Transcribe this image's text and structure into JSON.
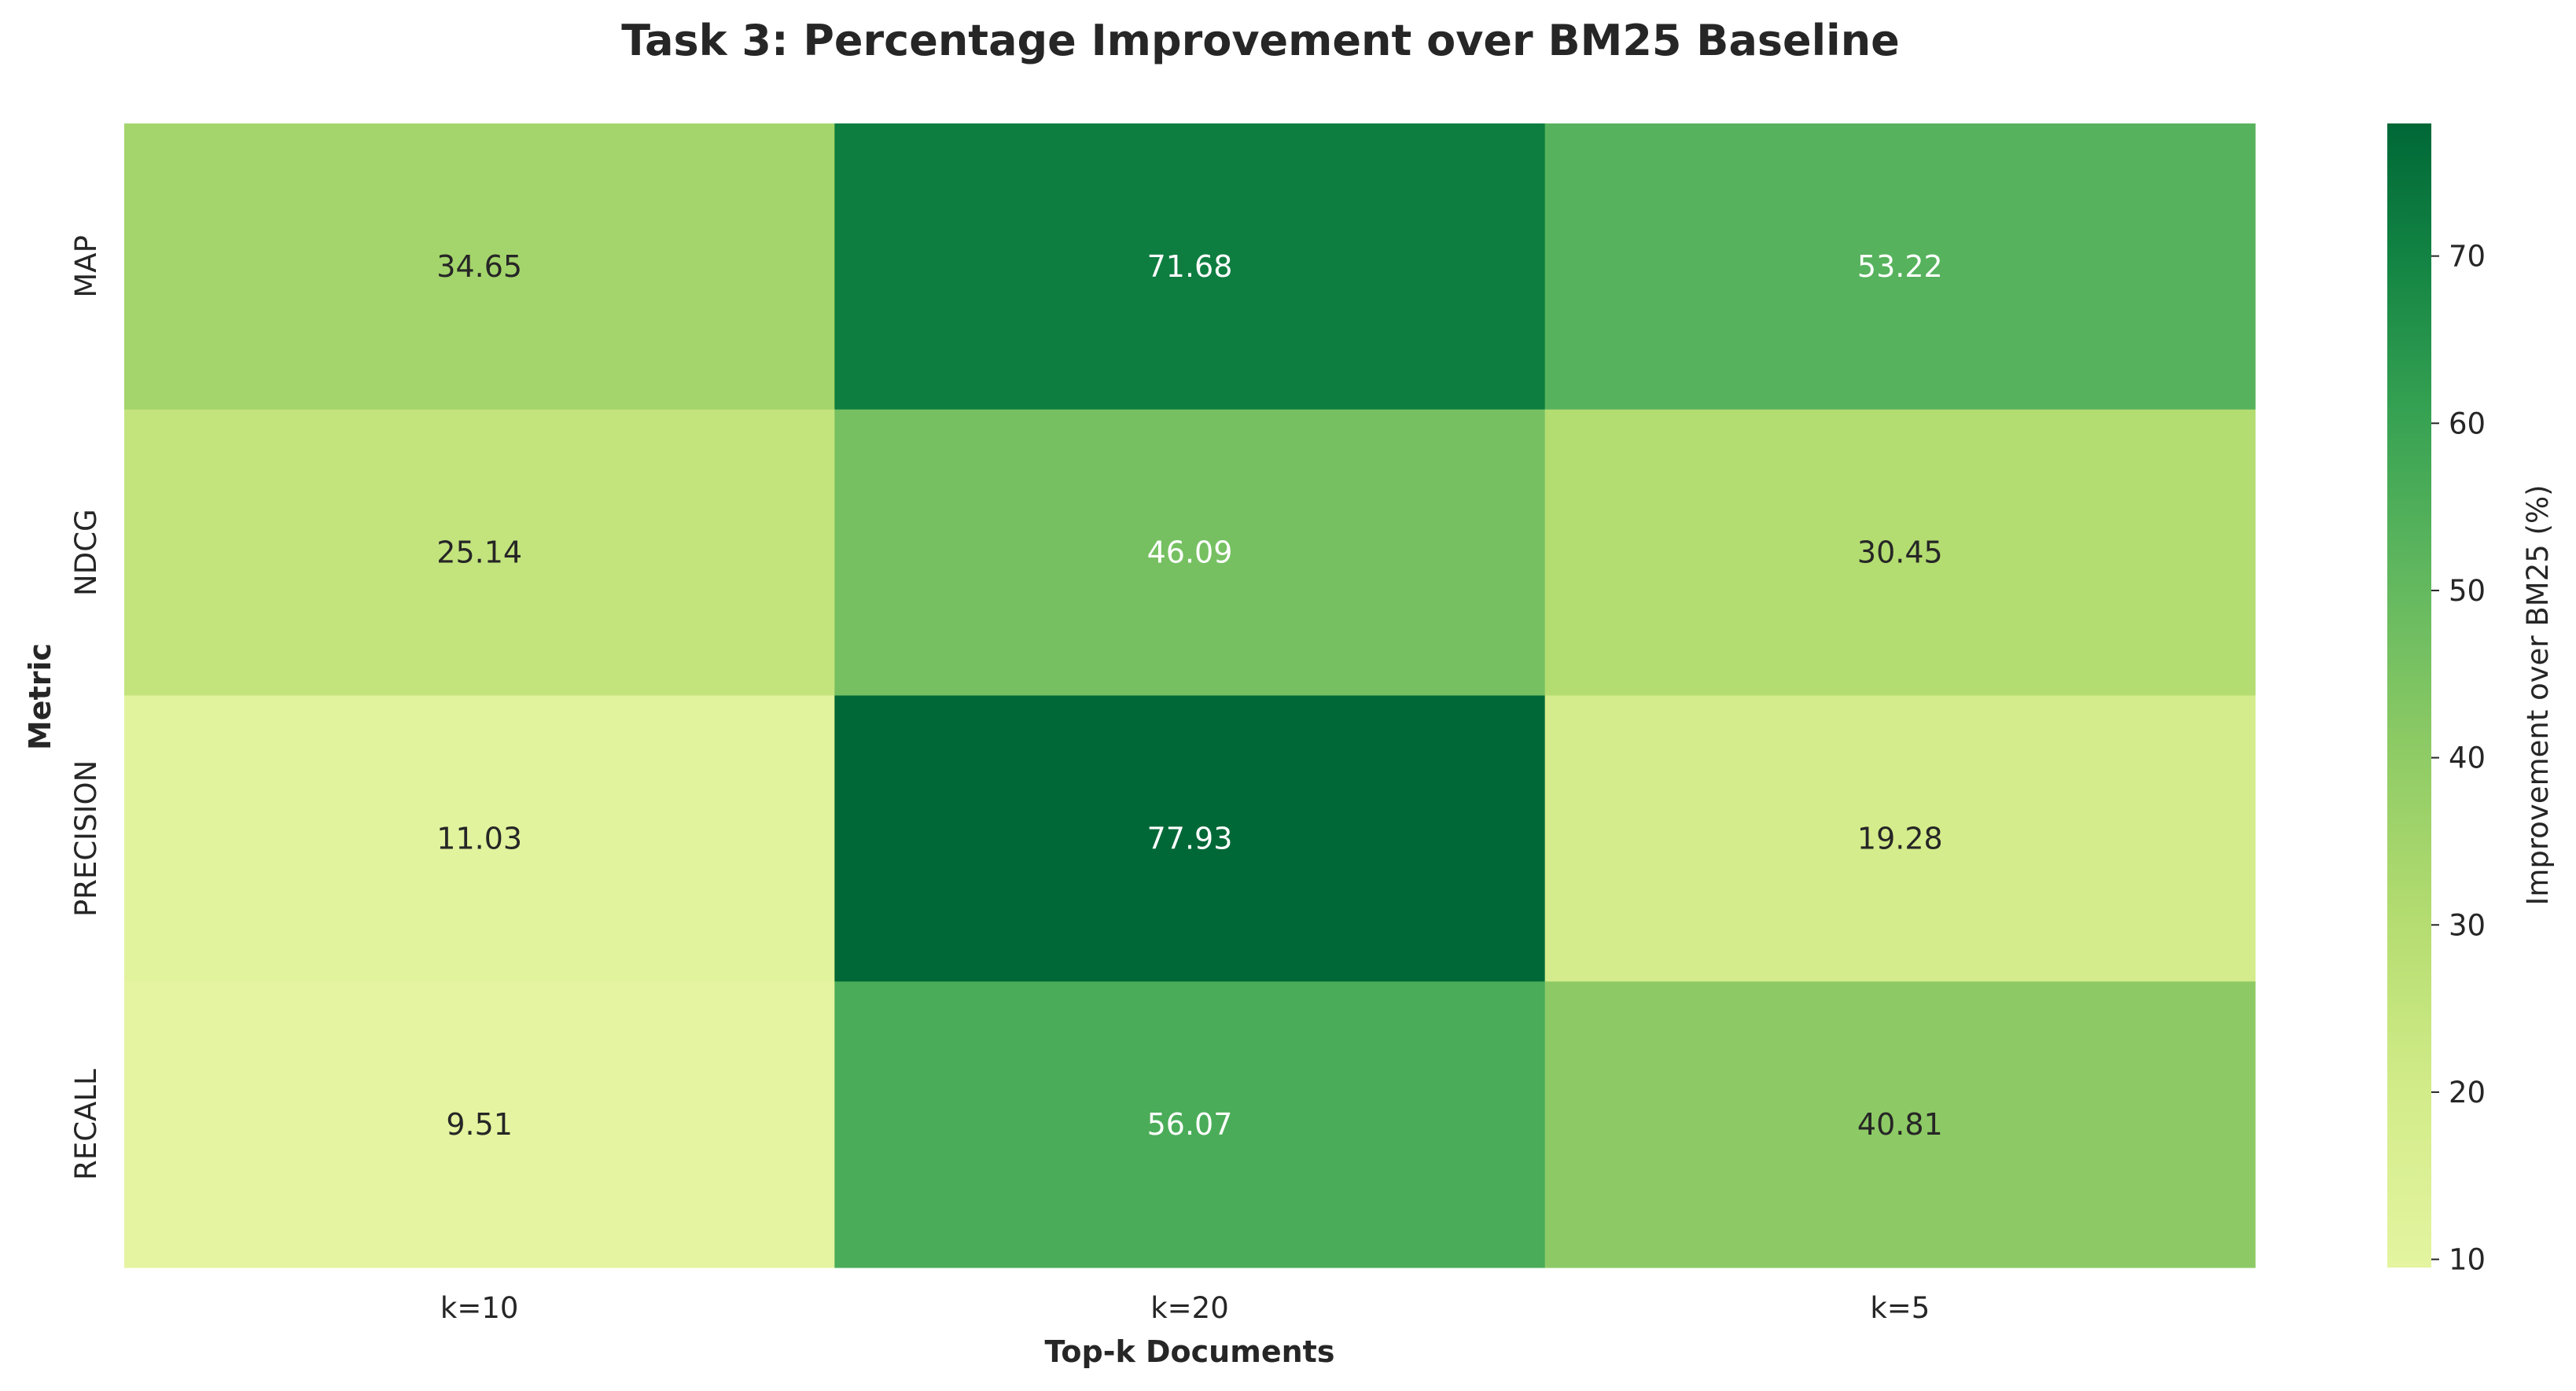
{
  "chart_data": {
    "type": "heatmap",
    "title": "Task 3: Percentage Improvement over BM25 Baseline",
    "xlabel": "Top-k Documents",
    "ylabel": "Metric",
    "x_categories": [
      "k=10",
      "k=20",
      "k=5"
    ],
    "y_categories": [
      "MAP",
      "NDCG",
      "PRECISION",
      "RECALL"
    ],
    "values": [
      [
        34.65,
        71.68,
        53.22
      ],
      [
        25.14,
        46.09,
        30.45
      ],
      [
        11.03,
        77.93,
        19.28
      ],
      [
        9.51,
        56.07,
        40.81
      ]
    ],
    "value_format": "0.00",
    "colormap": "YlGn",
    "colorbar": {
      "label": "Improvement over BM25 (%)",
      "range": [
        9.51,
        77.93
      ],
      "ticks": [
        10,
        20,
        30,
        40,
        50,
        60,
        70
      ]
    },
    "colors": {
      "low": "#e4f4a0",
      "high": "#006837",
      "text_dark": "#262626",
      "text_light": "#ffffff"
    }
  }
}
